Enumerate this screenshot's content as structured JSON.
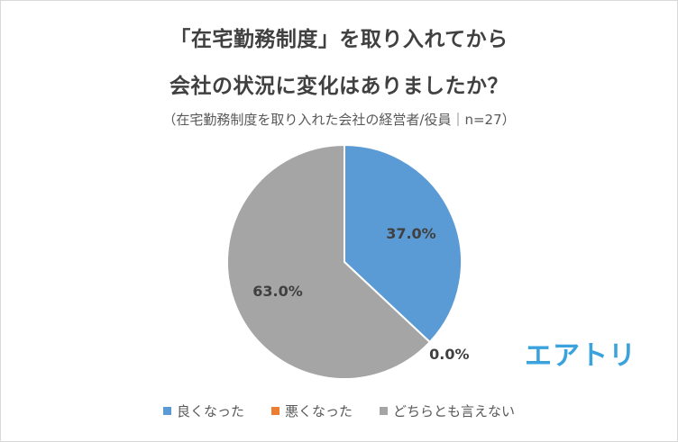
{
  "title_line1": "「在宅勤務制度」を取り入れてから",
  "title_line2": "会社の状況に変化はありましたか？",
  "subtitle": "（在宅勤務制度を取り入れた会社の経営者/役員｜n=27）",
  "logo_text": "エアトリ",
  "chart_data": {
    "type": "pie",
    "title": "「在宅勤務制度」を取り入れてから会社の状況に変化はありましたか？",
    "subtitle": "（在宅勤務制度を取り入れた会社の経営者/役員｜n=27）",
    "slices": [
      {
        "label": "良くなった",
        "value": 37.0,
        "display": "37.0%",
        "color": "#5b9bd5"
      },
      {
        "label": "悪くなった",
        "value": 0.0,
        "display": "0.0%",
        "color": "#ed7d31"
      },
      {
        "label": "どちらとも言えない",
        "value": 63.0,
        "display": "63.0%",
        "color": "#a5a5a5"
      }
    ],
    "legend_position": "bottom"
  }
}
